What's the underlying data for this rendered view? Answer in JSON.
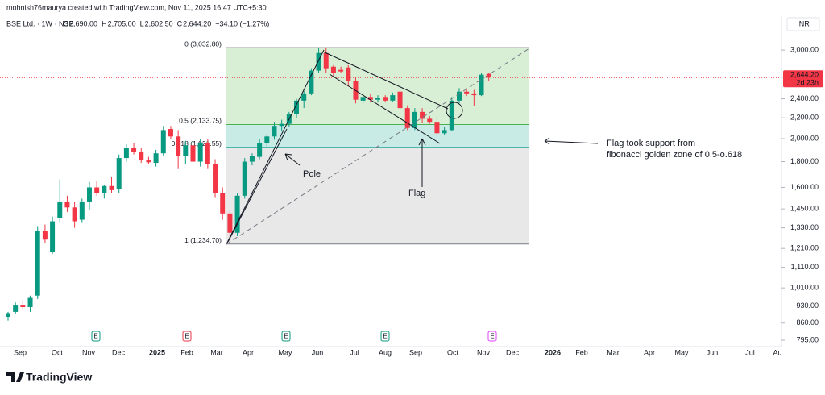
{
  "header": {
    "credit": "mohnish76maurya created with TradingView.com, Nov 11, 2025 16:47 UTC+5:30",
    "symbol": "BSE Ltd. · 1W · NSE",
    "ohlc": [
      {
        "key": "O",
        "value": "2,690.00"
      },
      {
        "key": "H",
        "value": "2,705.00"
      },
      {
        "key": "L",
        "value": "2,602.50"
      },
      {
        "key": "C",
        "value": "2,644.20"
      }
    ],
    "change": "−34.10 (−1.27%)",
    "brand": "TradingView"
  },
  "annotations": {
    "pole": "Pole",
    "flag": "Flag",
    "support": [
      "Flag took support from",
      "fibonacci golden zone of 0.5-o.618"
    ]
  },
  "chart_data": {
    "type": "candlestick",
    "currency": "INR",
    "log_scale": true,
    "up_color": "#089981",
    "down_color": "#f23645",
    "open": [
      885,
      905,
      935,
      925,
      975,
      1310,
      1190,
      1390,
      1500,
      1460,
      1380,
      1500,
      1600,
      1560,
      1610,
      1590,
      1830,
      1920,
      1880,
      1810,
      1790,
      1870,
      2090,
      2020,
      1850,
      1940,
      1800,
      1960,
      1780,
      1560,
      1420,
      1300,
      1540,
      1800,
      1840,
      1960,
      2020,
      2120,
      2140,
      2240,
      2380,
      2460,
      2730,
      2960,
      2780,
      2740,
      2770,
      2600,
      2380,
      2420,
      2390,
      2420,
      2380,
      2480,
      2300,
      2100,
      2260,
      2190,
      2160,
      2050,
      2080,
      2380,
      2480,
      2460,
      2440,
      2690
    ],
    "high": [
      905,
      945,
      955,
      975,
      1340,
      1350,
      1400,
      1660,
      1540,
      1500,
      1520,
      1640,
      1650,
      1620,
      1680,
      1860,
      1950,
      1960,
      1920,
      1840,
      1900,
      2120,
      2120,
      2080,
      1980,
      2010,
      2000,
      2000,
      1820,
      1600,
      1440,
      1560,
      1830,
      1870,
      2000,
      2040,
      2160,
      2180,
      2260,
      2400,
      2490,
      2760,
      3032.8,
      3030,
      2800,
      2780,
      2800,
      2650,
      2450,
      2460,
      2440,
      2440,
      2470,
      2500,
      2330,
      2300,
      2300,
      2220,
      2220,
      2110,
      2420,
      2520,
      2510,
      2500,
      2700,
      2705
    ],
    "low": [
      870,
      895,
      915,
      905,
      960,
      1240,
      1180,
      1360,
      1430,
      1330,
      1360,
      1440,
      1540,
      1520,
      1560,
      1560,
      1800,
      1860,
      1790,
      1780,
      1760,
      1850,
      2000,
      1740,
      1780,
      1750,
      1760,
      1740,
      1530,
      1380,
      1234.7,
      1280,
      1520,
      1770,
      1820,
      1930,
      1990,
      2070,
      2110,
      2200,
      2300,
      2440,
      2700,
      2700,
      2660,
      2700,
      2540,
      2350,
      2350,
      2360,
      2360,
      2360,
      2370,
      2280,
      2080,
      2080,
      2150,
      2140,
      2020,
      2030,
      2070,
      2350,
      2430,
      2320,
      2430,
      2602.5
    ],
    "close": [
      900,
      935,
      925,
      965,
      1310,
      1260,
      1370,
      1500,
      1460,
      1370,
      1500,
      1600,
      1560,
      1610,
      1580,
      1830,
      1920,
      1880,
      1810,
      1795,
      1870,
      2080,
      2020,
      1850,
      1940,
      1800,
      1960,
      1780,
      1560,
      1420,
      1300,
      1540,
      1800,
      1850,
      1960,
      2020,
      2120,
      2140,
      2240,
      2380,
      2460,
      2730,
      2960,
      2760,
      2700,
      2720,
      2600,
      2390,
      2420,
      2390,
      2410,
      2380,
      2440,
      2300,
      2100,
      2260,
      2190,
      2160,
      2050,
      2080,
      2380,
      2480,
      2460,
      2440,
      2680,
      2644.2
    ],
    "last_price": {
      "value": 2644.2,
      "label": "2,644.20"
    },
    "countdown": "2d 23h",
    "ylim": [
      772,
      3530
    ],
    "yticks": [
      {
        "value": 795,
        "label": "795.00"
      },
      {
        "value": 860,
        "label": "860.00"
      },
      {
        "value": 930,
        "label": "930.00"
      },
      {
        "value": 1010,
        "label": "1,010.00"
      },
      {
        "value": 1110,
        "label": "1,110.00"
      },
      {
        "value": 1210,
        "label": "1,210.00"
      },
      {
        "value": 1330,
        "label": "1,330.00"
      },
      {
        "value": 1450,
        "label": "1,450.00"
      },
      {
        "value": 1600,
        "label": "1,600.00"
      },
      {
        "value": 1800,
        "label": "1,800.00"
      },
      {
        "value": 2000,
        "label": "2,000.00"
      },
      {
        "value": 2200,
        "label": "2,200.00"
      },
      {
        "value": 2400,
        "label": "2,400.00"
      },
      {
        "value": 3000,
        "label": "3,000.00"
      }
    ],
    "xticks": [
      "Sep",
      "Oct",
      "Nov",
      "Dec",
      "2025",
      "Feb",
      "Mar",
      "Apr",
      "May",
      "Jun",
      "Jul",
      "Aug",
      "Sep",
      "Oct",
      "Nov",
      "Dec",
      "2026",
      "Feb",
      "Mar",
      "Apr",
      "May",
      "Jun",
      "Jul",
      "Au"
    ],
    "fib_levels": [
      {
        "value": 3032.8,
        "label": "0 (3,032.80)",
        "color": "#787b86"
      },
      {
        "value": 2133.75,
        "label": "0.5 (2,133.75)",
        "color": "#4caf50"
      },
      {
        "value": 1921.55,
        "label": "0.618 (1,921.55)",
        "color": "#009688"
      },
      {
        "value": 1234.7,
        "label": "1 (1,234.70)",
        "color": "#787b86"
      }
    ],
    "fib_zones": [
      "#d9efd5",
      "#c9ebe6",
      "#e8e8e8"
    ],
    "events": [
      {
        "label": "E",
        "color": "#089981"
      },
      {
        "label": "E",
        "color": "#f23645"
      },
      {
        "label": "E",
        "color": "#089981"
      },
      {
        "label": "E",
        "color": "#089981"
      },
      {
        "label": "E",
        "color": "#e040fb"
      }
    ]
  }
}
